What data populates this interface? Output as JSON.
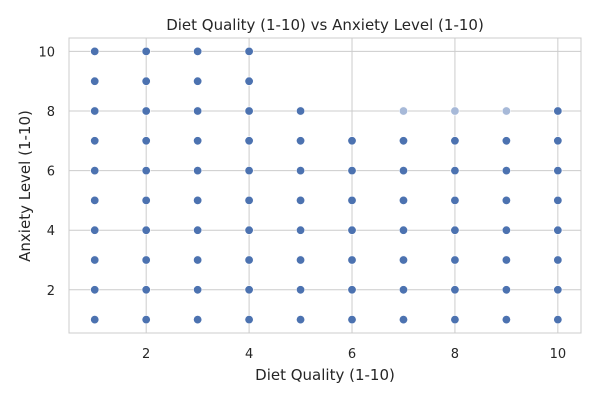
{
  "chart_data": {
    "type": "scatter",
    "title": "Diet Quality (1-10) vs Anxiety Level (1-10)",
    "xlabel": "Diet Quality (1-10)",
    "ylabel": "Anxiety Level (1-10)",
    "xlim": [
      0.5,
      10.45
    ],
    "ylim": [
      0.55,
      10.45
    ],
    "xticks": [
      2,
      4,
      6,
      8,
      10
    ],
    "yticks": [
      2,
      4,
      6,
      8,
      10
    ],
    "grid": true,
    "point_color": "#4c72b0",
    "point_color_faint": "#a7b9d8",
    "points": [
      {
        "x": 1,
        "y": [
          1,
          2,
          3,
          4,
          5,
          6,
          7,
          8,
          9,
          10
        ]
      },
      {
        "x": 2,
        "y": [
          1,
          2,
          3,
          4,
          5,
          6,
          7,
          8,
          9,
          10
        ]
      },
      {
        "x": 3,
        "y": [
          1,
          2,
          3,
          4,
          5,
          6,
          7,
          8,
          9,
          10
        ]
      },
      {
        "x": 4,
        "y": [
          1,
          2,
          3,
          4,
          5,
          6,
          7,
          8,
          9,
          10
        ]
      },
      {
        "x": 5,
        "y": [
          1,
          2,
          3,
          4,
          5,
          6,
          7,
          8
        ]
      },
      {
        "x": 6,
        "y": [
          1,
          2,
          3,
          4,
          5,
          6,
          7
        ]
      },
      {
        "x": 7,
        "y": [
          1,
          2,
          3,
          4,
          5,
          6,
          7
        ]
      },
      {
        "x": 8,
        "y": [
          1,
          2,
          3,
          4,
          5,
          6,
          7
        ]
      },
      {
        "x": 9,
        "y": [
          1,
          2,
          3,
          4,
          5,
          6,
          7
        ]
      },
      {
        "x": 10,
        "y": [
          1,
          2,
          3,
          4,
          5,
          6,
          7,
          8
        ]
      }
    ],
    "faint_points": [
      {
        "x": 7,
        "y": 8
      },
      {
        "x": 8,
        "y": 8
      },
      {
        "x": 9,
        "y": 8
      }
    ]
  }
}
